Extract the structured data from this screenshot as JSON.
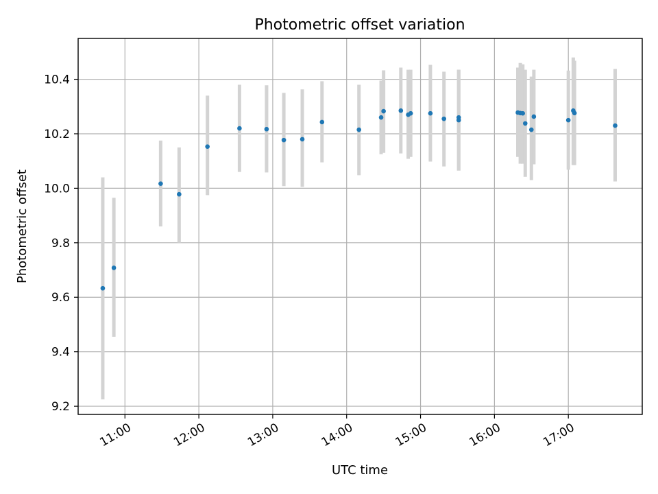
{
  "chart_data": {
    "type": "scatter",
    "title": "Photometric offset variation",
    "xlabel": "UTC time",
    "ylabel": "Photometric offset",
    "xlim": [
      "10:22",
      "18:00"
    ],
    "ylim": [
      9.17,
      10.55
    ],
    "xticks": [
      "11:00",
      "12:00",
      "13:00",
      "14:00",
      "15:00",
      "16:00",
      "17:00"
    ],
    "yticks": [
      9.2,
      9.4,
      9.6,
      9.8,
      10.0,
      10.2,
      10.4
    ],
    "grid": true,
    "colors": {
      "points": "#1f77b4",
      "errorbars": "#d3d3d3"
    },
    "series": [
      {
        "points": [
          {
            "x": "10:42",
            "y": 9.633,
            "err_low": 9.225,
            "err_high": 10.04
          },
          {
            "x": "10:51",
            "y": 9.708,
            "err_low": 9.455,
            "err_high": 9.965
          },
          {
            "x": "11:29",
            "y": 10.017,
            "err_low": 9.86,
            "err_high": 10.175
          },
          {
            "x": "11:44",
            "y": 9.978,
            "err_low": 9.8,
            "err_high": 10.15
          },
          {
            "x": "12:07",
            "y": 10.153,
            "err_low": 9.975,
            "err_high": 10.34
          },
          {
            "x": "12:33",
            "y": 10.22,
            "err_low": 10.06,
            "err_high": 10.38
          },
          {
            "x": "12:55",
            "y": 10.217,
            "err_low": 10.058,
            "err_high": 10.378
          },
          {
            "x": "13:09",
            "y": 10.177,
            "err_low": 10.008,
            "err_high": 10.35
          },
          {
            "x": "13:24",
            "y": 10.18,
            "err_low": 10.005,
            "err_high": 10.363
          },
          {
            "x": "13:40",
            "y": 10.243,
            "err_low": 10.095,
            "err_high": 10.393
          },
          {
            "x": "14:10",
            "y": 10.215,
            "err_low": 10.048,
            "err_high": 10.38
          },
          {
            "x": "14:28",
            "y": 10.26,
            "err_low": 10.125,
            "err_high": 10.395
          },
          {
            "x": "14:30",
            "y": 10.283,
            "err_low": 10.13,
            "err_high": 10.433
          },
          {
            "x": "14:44",
            "y": 10.285,
            "err_low": 10.128,
            "err_high": 10.443
          },
          {
            "x": "14:50",
            "y": 10.27,
            "err_low": 10.108,
            "err_high": 10.435
          },
          {
            "x": "14:52",
            "y": 10.275,
            "err_low": 10.115,
            "err_high": 10.435
          },
          {
            "x": "15:08",
            "y": 10.275,
            "err_low": 10.098,
            "err_high": 10.453
          },
          {
            "x": "15:19",
            "y": 10.255,
            "err_low": 10.08,
            "err_high": 10.428
          },
          {
            "x": "15:31",
            "y": 10.26,
            "err_low": 10.065,
            "err_high": 10.435
          },
          {
            "x": "15:31",
            "y": 10.25,
            "err_low": 10.065,
            "err_high": 10.435
          },
          {
            "x": "16:19",
            "y": 10.278,
            "err_low": 10.115,
            "err_high": 10.443
          },
          {
            "x": "16:21",
            "y": 10.276,
            "err_low": 10.09,
            "err_high": 10.46
          },
          {
            "x": "16:23",
            "y": 10.275,
            "err_low": 10.09,
            "err_high": 10.455
          },
          {
            "x": "16:25",
            "y": 10.238,
            "err_low": 10.042,
            "err_high": 10.435
          },
          {
            "x": "16:30",
            "y": 10.215,
            "err_low": 10.03,
            "err_high": 10.41
          },
          {
            "x": "16:32",
            "y": 10.263,
            "err_low": 10.088,
            "err_high": 10.435
          },
          {
            "x": "17:00",
            "y": 10.25,
            "err_low": 10.068,
            "err_high": 10.432
          },
          {
            "x": "17:04",
            "y": 10.285,
            "err_low": 10.085,
            "err_high": 10.48
          },
          {
            "x": "17:05",
            "y": 10.276,
            "err_low": 10.085,
            "err_high": 10.468
          },
          {
            "x": "17:38",
            "y": 10.23,
            "err_low": 10.025,
            "err_high": 10.438
          }
        ]
      }
    ]
  }
}
